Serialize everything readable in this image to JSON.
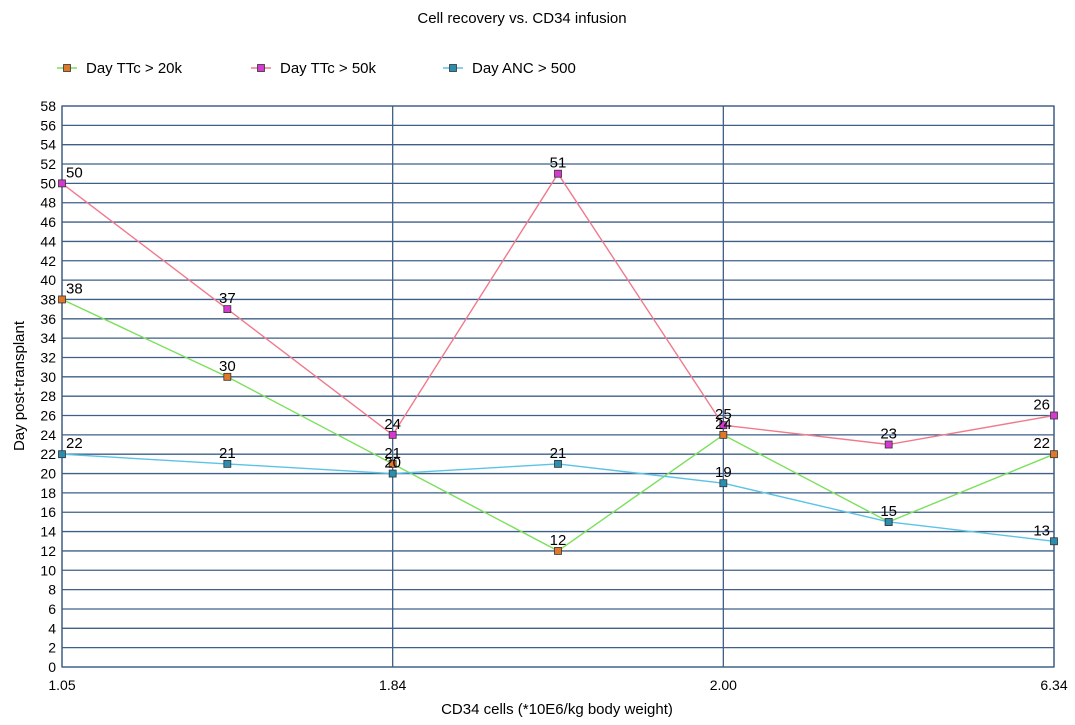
{
  "chart_data": {
    "type": "line",
    "title": "Cell recovery vs. CD34 infusion",
    "xlabel": "CD34 cells (*10E6/kg body weight)",
    "ylabel": "Day post-transplant",
    "x_tick_labels": [
      "1.05",
      "1.84",
      "2.00",
      "6.34"
    ],
    "x_tick_positions": [
      0,
      2,
      4,
      6
    ],
    "x": [
      0,
      1,
      2,
      3,
      4,
      5,
      6
    ],
    "ylim": [
      0,
      58
    ],
    "y_tick_step": 2,
    "grid": true,
    "legend_position": "top",
    "series": [
      {
        "name": "Day TTc > 20k",
        "line_color": "#7be05a",
        "marker_color": "#e0782a",
        "values": [
          38,
          30,
          21,
          12,
          24,
          15,
          22
        ]
      },
      {
        "name": "Day TTc > 50k",
        "line_color": "#f07a8c",
        "marker_color": "#d53ad0",
        "values": [
          50,
          37,
          24,
          51,
          25,
          23,
          26
        ]
      },
      {
        "name": "Day ANC > 500",
        "line_color": "#5cc3e6",
        "marker_color": "#2b8eb0",
        "values": [
          22,
          21,
          20,
          21,
          19,
          15,
          13
        ]
      }
    ],
    "data_labels": [
      {
        "series": 1,
        "index": 0,
        "text": "50"
      },
      {
        "series": 0,
        "index": 0,
        "text": "38"
      },
      {
        "series": 2,
        "index": 0,
        "text": "22"
      },
      {
        "series": 1,
        "index": 1,
        "text": "37"
      },
      {
        "series": 0,
        "index": 1,
        "text": "30"
      },
      {
        "series": 2,
        "index": 1,
        "text": "21"
      },
      {
        "series": 1,
        "index": 2,
        "text": "24"
      },
      {
        "series": 0,
        "index": 2,
        "text": "21"
      },
      {
        "series": 2,
        "index": 2,
        "text": "20"
      },
      {
        "series": 1,
        "index": 3,
        "text": "51"
      },
      {
        "series": 2,
        "index": 3,
        "text": "21"
      },
      {
        "series": 0,
        "index": 3,
        "text": "12"
      },
      {
        "series": 1,
        "index": 4,
        "text": "25"
      },
      {
        "series": 0,
        "index": 4,
        "text": "24"
      },
      {
        "series": 2,
        "index": 4,
        "text": "19"
      },
      {
        "series": 1,
        "index": 5,
        "text": "23"
      },
      {
        "series": 0,
        "index": 5,
        "text": "15"
      },
      {
        "series": 1,
        "index": 6,
        "text": "26"
      },
      {
        "series": 0,
        "index": 6,
        "text": "22"
      },
      {
        "series": 2,
        "index": 6,
        "text": "13"
      }
    ]
  }
}
